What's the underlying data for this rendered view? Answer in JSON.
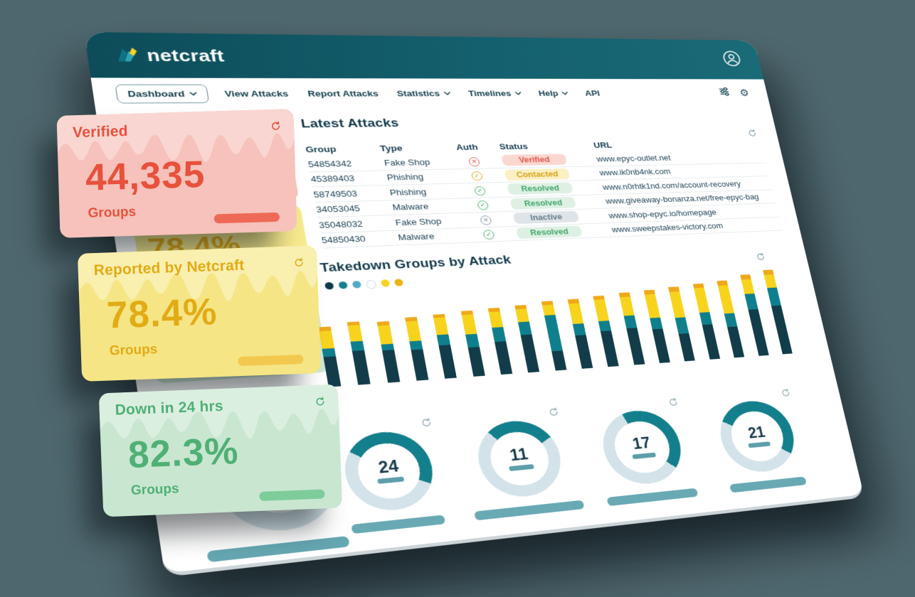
{
  "page": {
    "background": "#4e676e"
  },
  "header": {
    "brand": "netcraft"
  },
  "nav": {
    "items": [
      {
        "label": "Dashboard",
        "chevron": true,
        "boxed": true
      },
      {
        "label": "View Attacks"
      },
      {
        "label": "Report Attacks"
      },
      {
        "label": "Statistics",
        "chevron": true
      },
      {
        "label": "Timelines",
        "chevron": true
      },
      {
        "label": "Help",
        "chevron": true
      },
      {
        "label": "API"
      }
    ]
  },
  "floating_cards": [
    {
      "title": "Verified",
      "value": "44,335",
      "unit": "Groups",
      "accent": "#e8513c",
      "bg": "#f6c2bb",
      "wave": "#f9d6d1",
      "bar": "#ee6a56"
    },
    {
      "title": "Reported by Netcraft",
      "value": "78.4%",
      "unit": "Groups",
      "accent": "#e2ab16",
      "bg": "#f5e584",
      "wave": "#f9efaf",
      "bar": "#f2c94e"
    },
    {
      "title": "Down in 24 hrs",
      "value": "82.3%",
      "unit": "Groups",
      "accent": "#4fb075",
      "bg": "#c9e6d0",
      "wave": "#dbefe1",
      "bar": "#7fcc9b"
    }
  ],
  "peeks": {
    "yellow_value": "78.4%",
    "green_unit": "Groups"
  },
  "latest_attacks": {
    "title": "Latest Attacks",
    "columns": [
      "Group",
      "Type",
      "Auth",
      "Status",
      "URL"
    ],
    "rows": [
      {
        "group": "54854342",
        "type": "Fake Shop",
        "auth": "cross-red",
        "status": "Verified",
        "url": "www.epyc-outlet.net"
      },
      {
        "group": "45389403",
        "type": "Phishing",
        "auth": "check-amber",
        "status": "Contacted",
        "url": "www.ik0nb4nk.com"
      },
      {
        "group": "58749503",
        "type": "Phishing",
        "auth": "check-green",
        "status": "Resolved",
        "url": "www.n0rhtk1nd.com/account-recovery"
      },
      {
        "group": "34053045",
        "type": "Malware",
        "auth": "check-green",
        "status": "Resolved",
        "url": "www.giveaway-bonanza.net/free-epyc-bag"
      },
      {
        "group": "35048032",
        "type": "Fake Shop",
        "auth": "cross-gray",
        "status": "Inactive",
        "url": "www.shop-epyc.io/homepage"
      },
      {
        "group": "54850430",
        "type": "Malware",
        "auth": "check-green",
        "status": "Resolved",
        "url": "www.sweepstakes-victory.com"
      }
    ],
    "auth_styles": {
      "cross-red": {
        "glyph": "✕",
        "color": "#e2574c"
      },
      "check-amber": {
        "glyph": "✓",
        "color": "#dca514"
      },
      "check-green": {
        "glyph": "✓",
        "color": "#3fae68"
      },
      "cross-gray": {
        "glyph": "✕",
        "color": "#7e93a0"
      }
    }
  },
  "chart_data": {
    "type": "bar",
    "stacked": true,
    "title": "Takedown Groups by Attack",
    "xlabel": "",
    "ylabel": "",
    "axes_visible": false,
    "legend_position": "top-left",
    "legend_colors": [
      "#0d3a49",
      "#15808d",
      "#54a8c7",
      "#ffffff",
      "#f6d41e",
      "#eeb012"
    ],
    "bar_count": 18,
    "series": [
      {
        "name": "dark-teal",
        "color": "#123c4a",
        "values": [
          44,
          50,
          48,
          46,
          50,
          44,
          50,
          58,
          30,
          52,
          56,
          58,
          54,
          44,
          56,
          50,
          76,
          80
        ]
      },
      {
        "name": "teal",
        "color": "#0f7f8d",
        "values": [
          12,
          14,
          9,
          13,
          16,
          20,
          22,
          20,
          56,
          18,
          16,
          20,
          18,
          26,
          20,
          22,
          26,
          30
        ]
      },
      {
        "name": "yellow",
        "color": "#f7d31e",
        "values": [
          26,
          24,
          28,
          30,
          26,
          30,
          24,
          20,
          16,
          32,
          34,
          30,
          38,
          42,
          40,
          46,
          24,
          22
        ]
      },
      {
        "name": "amber",
        "color": "#f0a81a",
        "values": [
          6,
          5,
          6,
          6,
          5,
          6,
          6,
          6,
          6,
          7,
          6,
          7,
          7,
          8,
          7,
          8,
          8,
          8
        ]
      }
    ]
  },
  "donuts": {
    "arc_color": "#137f8c",
    "track_color": "#d3e3e9",
    "items": [
      {
        "value": "24",
        "start": -55,
        "sweep": 170,
        "caption_w": 120
      },
      {
        "value": "11",
        "start": -40,
        "sweep": 100,
        "caption_w": 150
      },
      {
        "value": "17",
        "start": -20,
        "sweep": 150,
        "caption_w": 132
      },
      {
        "value": "21",
        "start": -60,
        "sweep": 185,
        "caption_w": 118
      }
    ]
  },
  "big_donut": {
    "arc_color": "#0d6a78",
    "track_color": "#d5e4e9",
    "start": -100,
    "sweep": 210
  }
}
